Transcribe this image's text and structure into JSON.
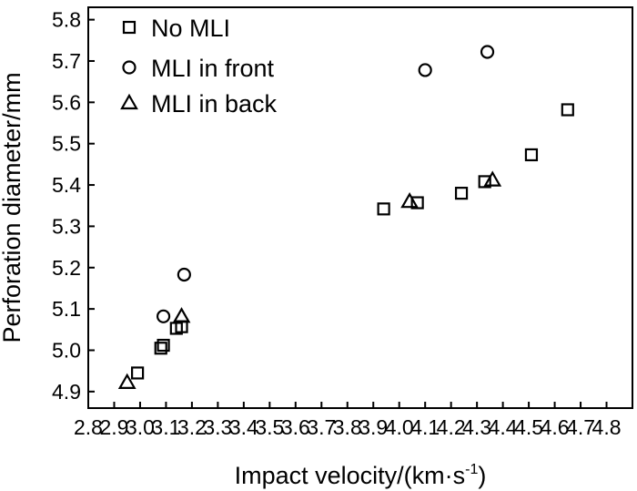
{
  "chart_data": {
    "type": "scatter",
    "xlabel": "Impact velocity/(km·s",
    "xlabel_sup": "-1",
    "xlabel_close": ")",
    "ylabel": "Perforation diameter/mm",
    "xlim": [
      2.8,
      4.9
    ],
    "ylim": [
      4.86,
      5.83
    ],
    "xticks": [
      "2.8",
      "2.9",
      "3.0",
      "3.1",
      "3.2",
      "3.3",
      "3.4",
      "3.5",
      "3.6",
      "3.7",
      "3.8",
      "3.9",
      "4.0",
      "4.1",
      "4.2",
      "4.3",
      "4.4",
      "4.5",
      "4.6",
      "4.7",
      "4.8"
    ],
    "yticks": [
      "4.9",
      "5.0",
      "5.1",
      "5.2",
      "5.3",
      "5.4",
      "5.5",
      "5.6",
      "5.7",
      "5.8"
    ],
    "grid": false,
    "legend_position": "top-left",
    "series": [
      {
        "name": "No MLI",
        "marker": "square",
        "points": [
          {
            "x": 2.99,
            "y": 4.945
          },
          {
            "x": 3.08,
            "y": 5.005
          },
          {
            "x": 3.09,
            "y": 5.012
          },
          {
            "x": 3.14,
            "y": 5.053
          },
          {
            "x": 3.16,
            "y": 5.057
          },
          {
            "x": 3.94,
            "y": 5.342
          },
          {
            "x": 4.07,
            "y": 5.357
          },
          {
            "x": 4.24,
            "y": 5.38
          },
          {
            "x": 4.33,
            "y": 5.408
          },
          {
            "x": 4.51,
            "y": 5.473
          },
          {
            "x": 4.65,
            "y": 5.582
          }
        ]
      },
      {
        "name": "MLI in front",
        "marker": "circle",
        "points": [
          {
            "x": 3.09,
            "y": 5.082
          },
          {
            "x": 3.17,
            "y": 5.183
          },
          {
            "x": 4.1,
            "y": 5.678
          },
          {
            "x": 4.34,
            "y": 5.722
          }
        ]
      },
      {
        "name": "MLI in back",
        "marker": "triangle",
        "points": [
          {
            "x": 2.95,
            "y": 4.922
          },
          {
            "x": 3.16,
            "y": 5.082
          },
          {
            "x": 4.04,
            "y": 5.36
          },
          {
            "x": 4.36,
            "y": 5.412
          }
        ]
      }
    ]
  }
}
